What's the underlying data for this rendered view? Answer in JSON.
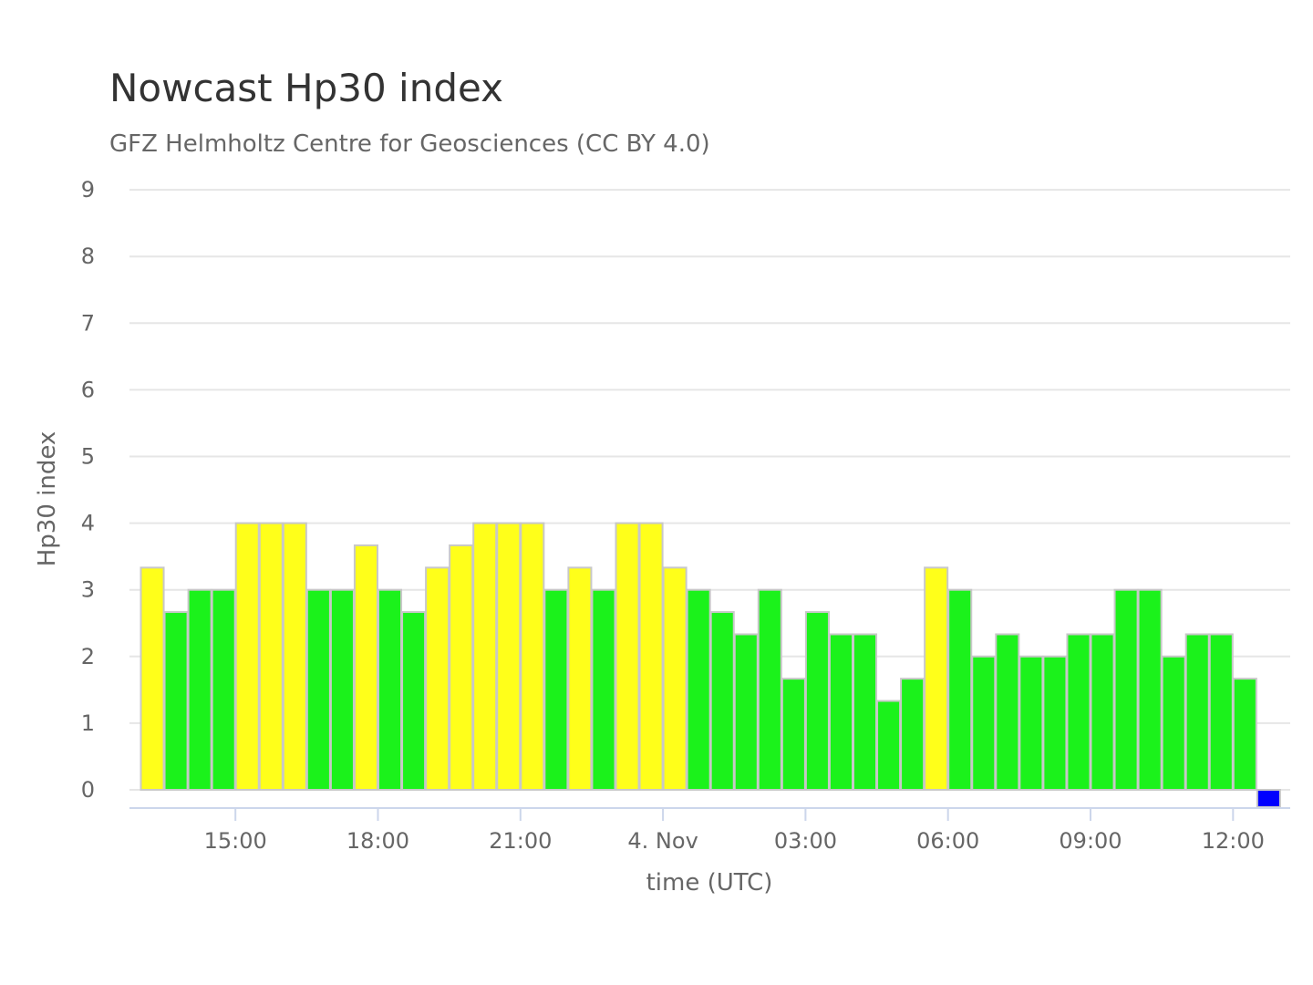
{
  "chart_data": {
    "type": "bar",
    "title": "Nowcast Hp30 index",
    "subtitle": "GFZ Helmholtz Centre for Geosciences (CC BY 4.0)",
    "xlabel": "time (UTC)",
    "ylabel": "Hp30 index",
    "ylim": [
      0,
      9
    ],
    "yticks": [
      "0",
      "1",
      "2",
      "3",
      "4",
      "5",
      "6",
      "7",
      "8",
      "9"
    ],
    "xlim": [
      "3 Nov 12:45",
      "4 Nov 13:15"
    ],
    "xtick_times": [
      "3 Nov 15:00",
      "3 Nov 18:00",
      "3 Nov 21:00",
      "4 Nov 00:00",
      "4 Nov 03:00",
      "4 Nov 06:00",
      "4 Nov 09:00",
      "4 Nov 12:00"
    ],
    "xtick_labels": [
      "15:00",
      "18:00",
      "21:00",
      "4. Nov",
      "03:00",
      "06:00",
      "09:00",
      "12:00"
    ],
    "bar_interval": "30 min",
    "first_bar_time": "3 Nov 13:00",
    "values": [
      3.333,
      2.667,
      3,
      3,
      4,
      4,
      4,
      3,
      3,
      3.667,
      3,
      2.667,
      3.333,
      3.667,
      4,
      4,
      4,
      3,
      3.333,
      3,
      4,
      4,
      3.333,
      3,
      2.667,
      2.333,
      3,
      1.667,
      2.667,
      2.333,
      2.333,
      1.333,
      1.667,
      3.333,
      3,
      2,
      2.333,
      2,
      2,
      2.333,
      2.333,
      3,
      3,
      2,
      2.333,
      2.333,
      1.667,
      0
    ],
    "colors": {
      "quiet": "#1bf21b",
      "active": "#ffff1a",
      "nowcast": "#0000ff",
      "bar_border": "#c8c8c8",
      "grid": "#e6e6e6",
      "axis": "#ccd6eb",
      "text": "#666666",
      "title": "#333333"
    },
    "grid": true,
    "legend": "none"
  }
}
